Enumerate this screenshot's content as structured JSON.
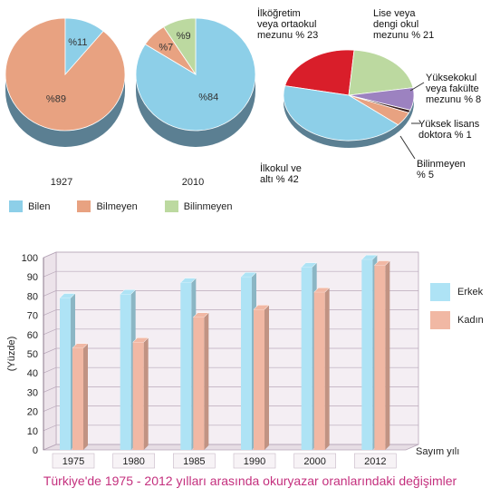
{
  "chart_data": [
    {
      "type": "pie",
      "year": "1927",
      "slices": [
        {
          "name": "Bilen",
          "value": 11,
          "label": "%11",
          "color": "#8dcfe8"
        },
        {
          "name": "Bilmeyen",
          "value": 89,
          "label": "%89",
          "color": "#e8a281"
        }
      ]
    },
    {
      "type": "pie",
      "year": "2010",
      "slices": [
        {
          "name": "Bilen",
          "value": 84,
          "label": "%84",
          "color": "#8dcfe8"
        },
        {
          "name": "Bilmeyen",
          "value": 7,
          "label": "%7",
          "color": "#e8a281"
        },
        {
          "name": "Bilinmeyen",
          "value": 9,
          "label": "%9",
          "color": "#bcd9a0"
        }
      ]
    },
    {
      "type": "pie",
      "slices": [
        {
          "name": "İlkokul ve altı",
          "value": 42,
          "label": "İlkokul ve\naltı % 42",
          "color": "#8dcfe8"
        },
        {
          "name": "İlköğretim veya ortaokul mezunu",
          "value": 23,
          "label": "İlköğretim\nveya ortaokul\nmezunu % 23",
          "color": "#d91e2a"
        },
        {
          "name": "Lise veya dengi okul mezunu",
          "value": 21,
          "label": "Lise veya\ndengi okul\nmezunu % 21",
          "color": "#bcd9a0"
        },
        {
          "name": "Yüksekokul veya fakülte mezunu",
          "value": 8,
          "label": "Yüksekokul\nveya fakülte\nmezunu % 8",
          "color": "#9c82c0"
        },
        {
          "name": "Yüksek lisans doktora",
          "value": 1,
          "label": "Yüksek lisans\ndoktora % 1",
          "color": "#3a1e1e"
        },
        {
          "name": "Bilinmeyen",
          "value": 5,
          "label": "Bilinmeyen\n% 5",
          "color": "#e8a281"
        }
      ]
    },
    {
      "type": "bar",
      "title": "Türkiye'de 1975 - 2012 yılları arasında okuryazar oranlarındaki değişimler",
      "xlabel": "Sayım yılı",
      "ylabel": "(Yüzde)",
      "ylim": [
        0,
        100
      ],
      "yticks": [
        0,
        10,
        20,
        30,
        40,
        50,
        60,
        70,
        80,
        90,
        100
      ],
      "categories": [
        "1975",
        "1980",
        "1985",
        "1990",
        "2000",
        "2012"
      ],
      "series": [
        {
          "name": "Erkek",
          "values": [
            79,
            81,
            87,
            90,
            95,
            99
          ],
          "color": "#aee3f5"
        },
        {
          "name": "Kadın",
          "values": [
            53,
            56,
            69,
            73,
            82,
            96
          ],
          "color": "#f1b8a4"
        }
      ],
      "legend": "right",
      "grid": true
    }
  ],
  "pie_legend": [
    {
      "label": "Bilen",
      "color": "#8dcfe8"
    },
    {
      "label": "Bilmeyen",
      "color": "#e8a281"
    },
    {
      "label": "Bilinmeyen",
      "color": "#bcd9a0"
    }
  ]
}
